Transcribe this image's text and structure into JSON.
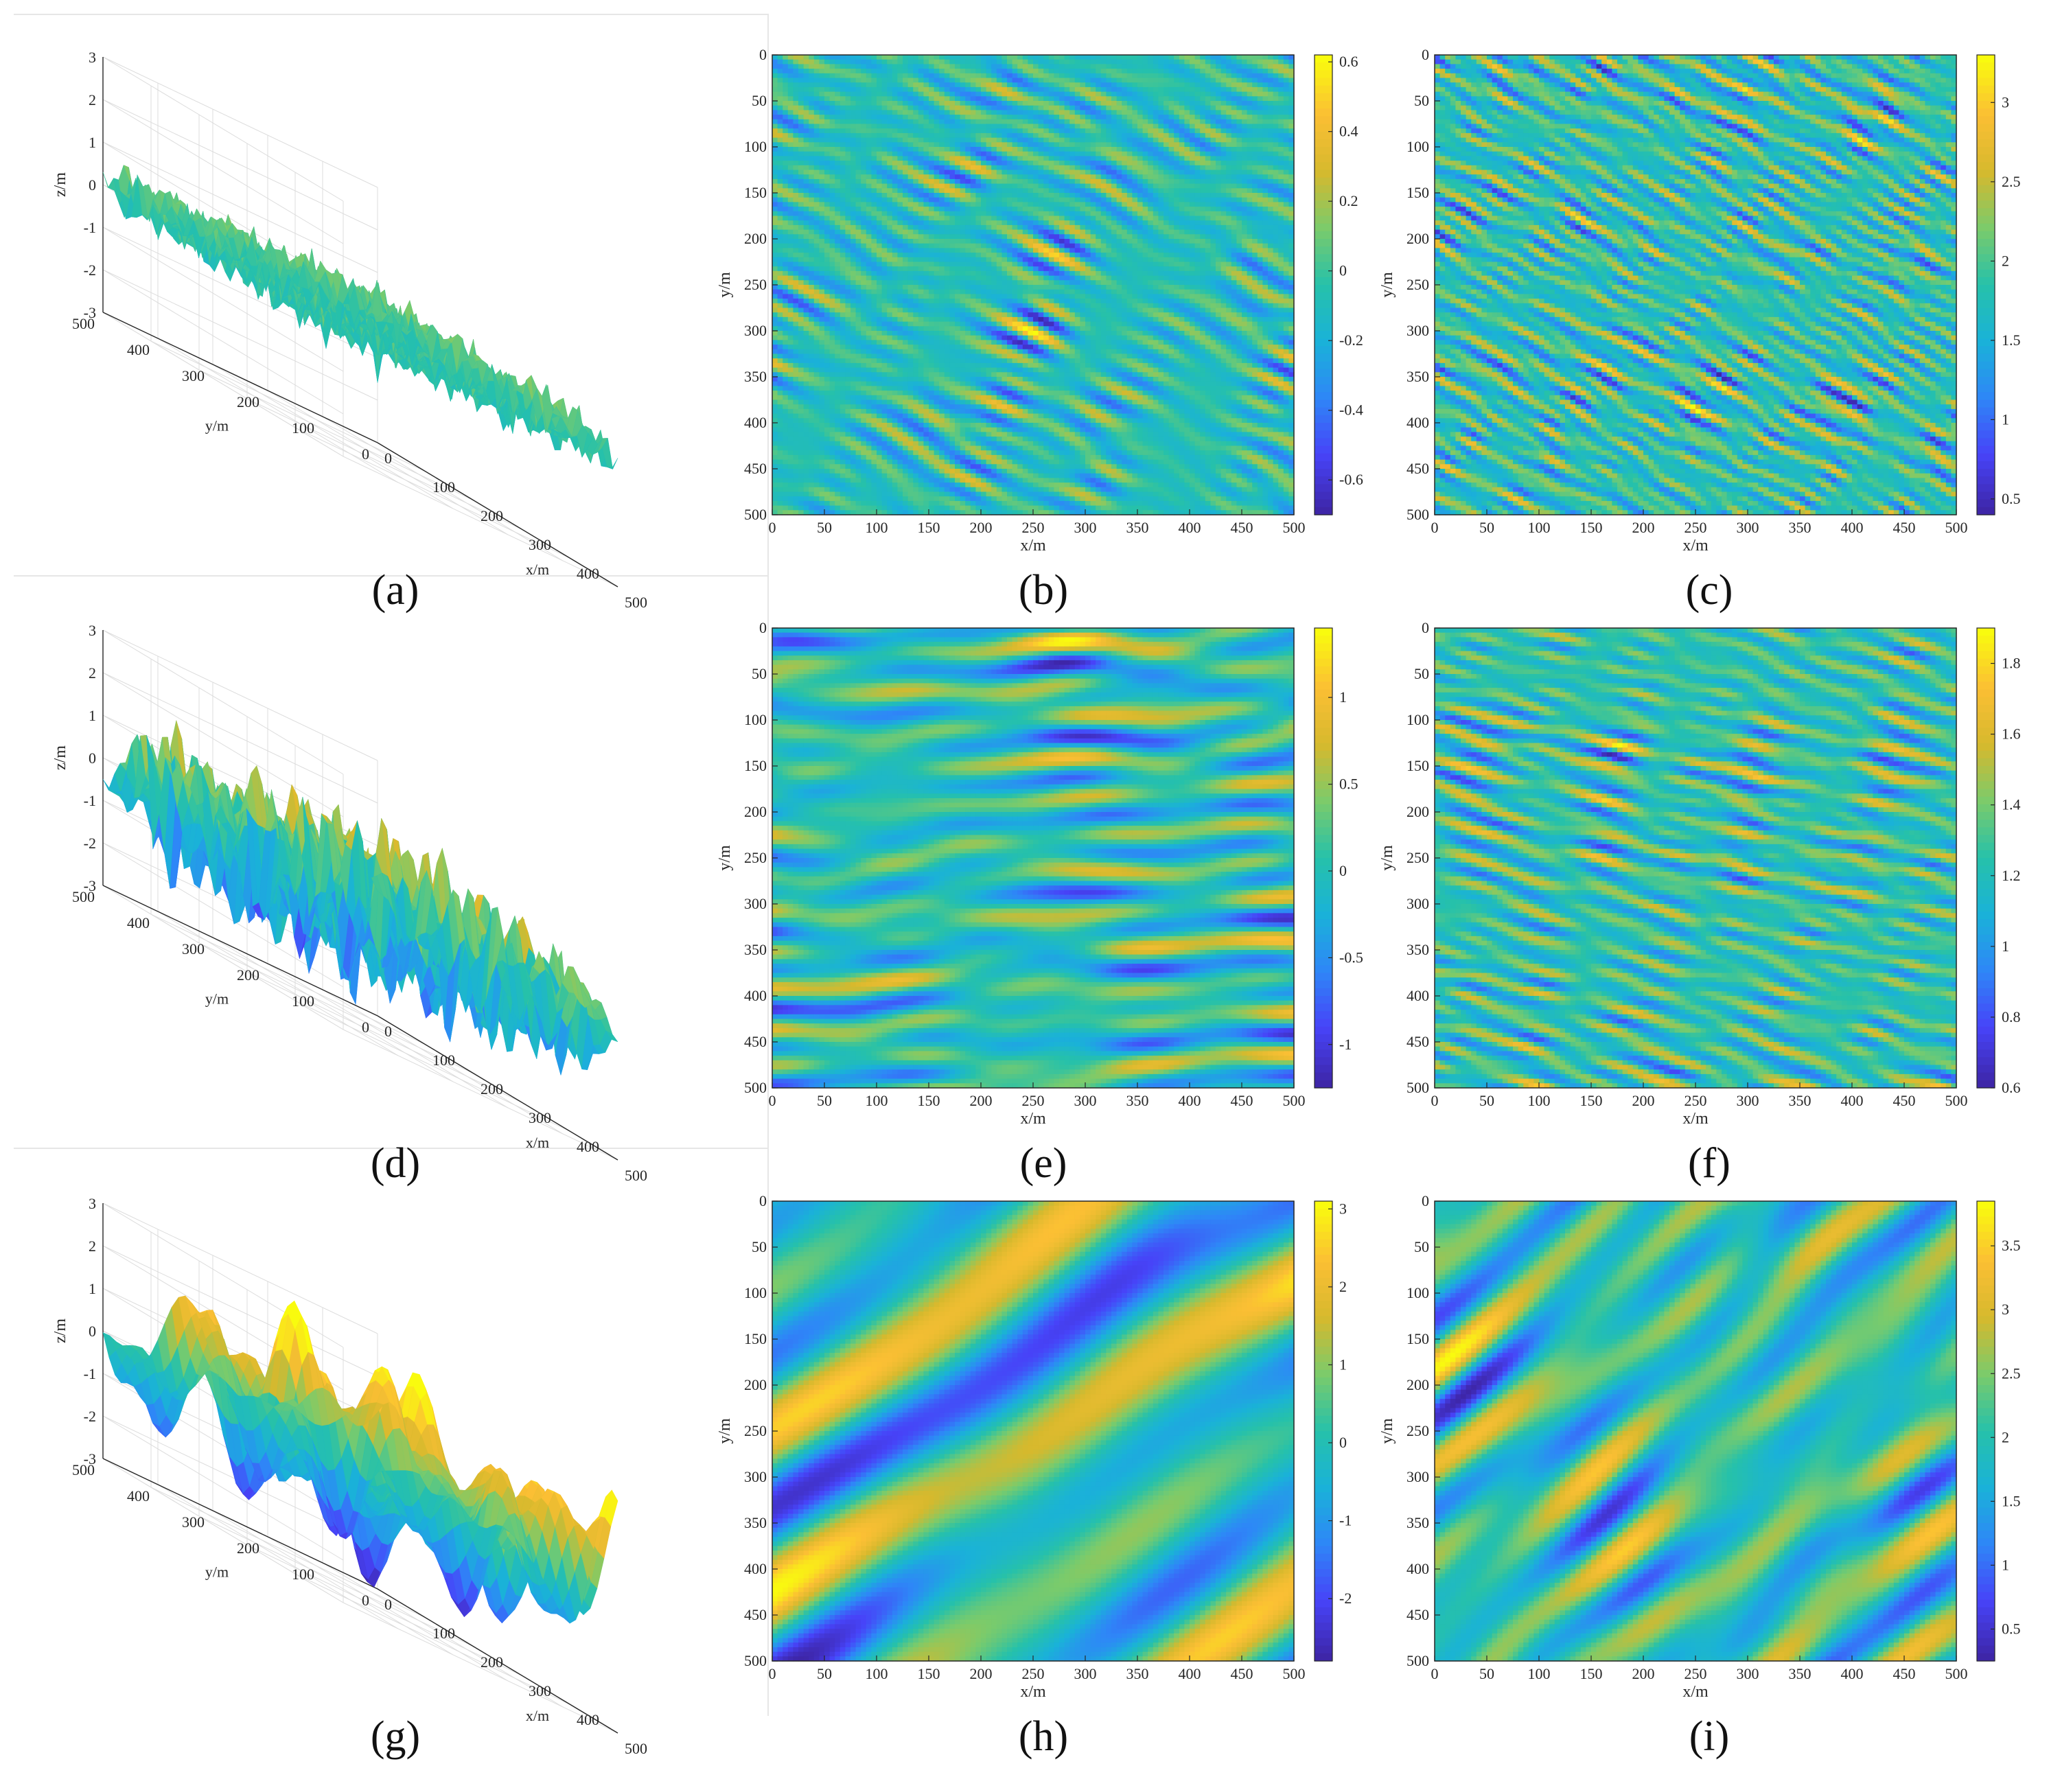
{
  "figure": {
    "captions": [
      "(a)",
      "(b)",
      "(c)",
      "(d)",
      "(e)",
      "(f)",
      "(g)",
      "(h)",
      "(i)"
    ],
    "colormap": [
      "#3e26a8",
      "#4743f8",
      "#2e87f7",
      "#1ab2d8",
      "#26c1aa",
      "#7bcb6b",
      "#d6b92d",
      "#fbbf34",
      "#f9fb0e"
    ]
  },
  "chart_data": [
    {
      "id": "a",
      "type": "surface3d",
      "caption": "(a)",
      "xlabel": "x/m",
      "ylabel": "y/m",
      "zlabel": "z/m",
      "xlim": [
        0,
        500
      ],
      "ylim": [
        0,
        500
      ],
      "zlim": [
        -3,
        3
      ],
      "xticks": [
        "0",
        "100",
        "200",
        "300",
        "400",
        "500"
      ],
      "yticks": [
        "0",
        "100",
        "200",
        "300",
        "400",
        "500"
      ],
      "zticks": [
        "-3",
        "-2",
        "-1",
        "0",
        "1",
        "2",
        "3"
      ],
      "roughness": "fine",
      "amplitude_range": [
        -1.0,
        1.0
      ]
    },
    {
      "id": "b",
      "type": "heatmap",
      "caption": "(b)",
      "xlabel": "x/m",
      "ylabel": "y/m",
      "xlim": [
        0,
        500
      ],
      "ylim": [
        0,
        500
      ],
      "xticks": [
        "0",
        "50",
        "100",
        "150",
        "200",
        "250",
        "300",
        "350",
        "400",
        "450",
        "500"
      ],
      "yticks": [
        "0",
        "50",
        "100",
        "150",
        "200",
        "250",
        "300",
        "350",
        "400",
        "450",
        "500"
      ],
      "colorbar": {
        "range": [
          -0.7,
          0.62
        ],
        "ticks": [
          "0.6",
          "0.4",
          "0.2",
          "0",
          "-0.2",
          "-0.4",
          "-0.6"
        ]
      },
      "pattern": {
        "orientation_deg": 30,
        "wavelength_m": 40
      }
    },
    {
      "id": "c",
      "type": "heatmap",
      "caption": "(c)",
      "xlabel": "x/m",
      "ylabel": "y/m",
      "xlim": [
        0,
        500
      ],
      "ylim": [
        0,
        500
      ],
      "xticks": [
        "0",
        "50",
        "100",
        "150",
        "200",
        "250",
        "300",
        "350",
        "400",
        "450",
        "500"
      ],
      "yticks": [
        "0",
        "50",
        "100",
        "150",
        "200",
        "250",
        "300",
        "350",
        "400",
        "450",
        "500"
      ],
      "colorbar": {
        "range": [
          0.4,
          3.3
        ],
        "ticks": [
          "3",
          "2.5",
          "2",
          "1.5",
          "1",
          "0.5"
        ]
      },
      "pattern": {
        "orientation_deg": 30,
        "wavelength_m": 25
      }
    },
    {
      "id": "d",
      "type": "surface3d",
      "caption": "(d)",
      "xlabel": "x/m",
      "ylabel": "y/m",
      "zlabel": "z/m",
      "xlim": [
        0,
        500
      ],
      "ylim": [
        0,
        500
      ],
      "zlim": [
        -3,
        3
      ],
      "xticks": [
        "0",
        "100",
        "200",
        "300",
        "400",
        "500"
      ],
      "yticks": [
        "0",
        "100",
        "200",
        "300",
        "400",
        "500"
      ],
      "zticks": [
        "-3",
        "-2",
        "-1",
        "0",
        "1",
        "2",
        "3"
      ],
      "roughness": "ridged",
      "amplitude_range": [
        -2.5,
        2.0
      ]
    },
    {
      "id": "e",
      "type": "heatmap",
      "caption": "(e)",
      "xlabel": "x/m",
      "ylabel": "y/m",
      "xlim": [
        0,
        500
      ],
      "ylim": [
        0,
        500
      ],
      "xticks": [
        "0",
        "50",
        "100",
        "150",
        "200",
        "250",
        "300",
        "350",
        "400",
        "450",
        "500"
      ],
      "yticks": [
        "0",
        "50",
        "100",
        "150",
        "200",
        "250",
        "300",
        "350",
        "400",
        "450",
        "500"
      ],
      "colorbar": {
        "range": [
          -1.25,
          1.4
        ],
        "ticks": [
          "1",
          "0.5",
          "0",
          "-0.5",
          "-1"
        ]
      },
      "pattern": {
        "orientation_deg": 2,
        "wavelength_m": 60
      }
    },
    {
      "id": "f",
      "type": "heatmap",
      "caption": "(f)",
      "xlabel": "x/m",
      "ylabel": "y/m",
      "xlim": [
        0,
        500
      ],
      "ylim": [
        0,
        500
      ],
      "xticks": [
        "0",
        "50",
        "100",
        "150",
        "200",
        "250",
        "300",
        "350",
        "400",
        "450",
        "500"
      ],
      "yticks": [
        "0",
        "50",
        "100",
        "150",
        "200",
        "250",
        "300",
        "350",
        "400",
        "450",
        "500"
      ],
      "colorbar": {
        "range": [
          0.6,
          1.9
        ],
        "ticks": [
          "1.8",
          "1.6",
          "1.4",
          "1.2",
          "1",
          "0.8",
          "0.6"
        ]
      },
      "pattern": {
        "orientation_deg": 18,
        "wavelength_m": 30
      }
    },
    {
      "id": "g",
      "type": "surface3d",
      "caption": "(g)",
      "xlabel": "x/m",
      "ylabel": "y/m",
      "zlabel": "z/m",
      "xlim": [
        0,
        500
      ],
      "ylim": [
        0,
        500
      ],
      "zlim": [
        -3,
        3
      ],
      "xticks": [
        "0",
        "100",
        "200",
        "300",
        "400",
        "500"
      ],
      "yticks": [
        "0",
        "100",
        "200",
        "300",
        "400",
        "500"
      ],
      "zticks": [
        "-3",
        "-2",
        "-1",
        "0",
        "1",
        "2",
        "3"
      ],
      "roughness": "smooth",
      "amplitude_range": [
        -2.5,
        3.0
      ]
    },
    {
      "id": "h",
      "type": "heatmap",
      "caption": "(h)",
      "xlabel": "x/m",
      "ylabel": "y/m",
      "xlim": [
        0,
        500
      ],
      "ylim": [
        0,
        500
      ],
      "xticks": [
        "0",
        "50",
        "100",
        "150",
        "200",
        "250",
        "300",
        "350",
        "400",
        "450",
        "500"
      ],
      "yticks": [
        "0",
        "50",
        "100",
        "150",
        "200",
        "250",
        "300",
        "350",
        "400",
        "450",
        "500"
      ],
      "colorbar": {
        "range": [
          -2.8,
          3.1
        ],
        "ticks": [
          "3",
          "2",
          "1",
          "0",
          "-1",
          "-2"
        ]
      },
      "pattern": {
        "orientation_deg": -35,
        "wavelength_m": 170
      }
    },
    {
      "id": "i",
      "type": "heatmap",
      "caption": "(i)",
      "xlabel": "x/m",
      "ylabel": "y/m",
      "xlim": [
        0,
        500
      ],
      "ylim": [
        0,
        500
      ],
      "xticks": [
        "0",
        "50",
        "100",
        "150",
        "200",
        "250",
        "300",
        "350",
        "400",
        "450",
        "500"
      ],
      "yticks": [
        "0",
        "50",
        "100",
        "150",
        "200",
        "250",
        "300",
        "350",
        "400",
        "450",
        "500"
      ],
      "colorbar": {
        "range": [
          0.25,
          3.85
        ],
        "ticks": [
          "3.5",
          "3",
          "2.5",
          "2",
          "1.5",
          "1",
          "0.5"
        ]
      },
      "pattern": {
        "orientation_deg": -45,
        "wavelength_m": 90
      }
    }
  ]
}
